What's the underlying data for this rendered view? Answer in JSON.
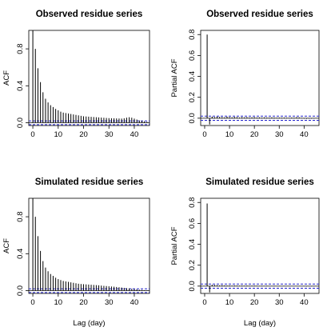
{
  "colors": {
    "bar": "#000000",
    "confidence_band": "#2222cc",
    "zero_line": "#000000",
    "frame": "#000000"
  },
  "chart_data": [
    {
      "type": "bar",
      "id": "obs-acf",
      "title": "Observed residue series",
      "xlabel": "",
      "ylabel": "ACF",
      "xlim": [
        -1.6,
        46
      ],
      "ylim": [
        -0.03,
        1.0
      ],
      "xticks": [
        "0",
        "10",
        "20",
        "30",
        "40"
      ],
      "yticks": [
        "0.0",
        "0.4",
        "0.8"
      ],
      "ci": 0.02,
      "lags": [
        0,
        1,
        2,
        3,
        4,
        5,
        6,
        7,
        8,
        9,
        10,
        11,
        12,
        13,
        14,
        15,
        16,
        17,
        18,
        19,
        20,
        21,
        22,
        23,
        24,
        25,
        26,
        27,
        28,
        29,
        30,
        31,
        32,
        33,
        34,
        35,
        36,
        37,
        38,
        39,
        40,
        41,
        42,
        43,
        44,
        45
      ],
      "values": [
        1.0,
        0.8,
        0.59,
        0.44,
        0.33,
        0.26,
        0.22,
        0.19,
        0.17,
        0.15,
        0.135,
        0.12,
        0.11,
        0.105,
        0.1,
        0.095,
        0.09,
        0.085,
        0.08,
        0.075,
        0.07,
        0.068,
        0.066,
        0.064,
        0.062,
        0.06,
        0.058,
        0.056,
        0.054,
        0.052,
        0.05,
        0.049,
        0.048,
        0.047,
        0.046,
        0.045,
        0.048,
        0.055,
        0.06,
        0.055,
        0.045,
        0.035,
        0.025,
        0.02,
        0.015,
        0.01
      ]
    },
    {
      "type": "bar",
      "id": "obs-pacf",
      "title": "Observed residue series",
      "xlabel": "",
      "ylabel": "Partial ACF",
      "xlim": [
        -1.6,
        46
      ],
      "ylim": [
        -0.07,
        0.84
      ],
      "xticks": [
        "0",
        "10",
        "20",
        "30",
        "40"
      ],
      "yticks": [
        "0.0",
        "0.2",
        "0.4",
        "0.6",
        "0.8"
      ],
      "ci": 0.02,
      "lags": [
        1,
        2,
        3,
        4,
        5,
        6,
        7,
        8,
        9,
        10,
        11,
        12,
        13,
        14,
        15,
        16,
        17,
        18,
        19,
        20,
        21,
        22,
        23,
        24,
        25,
        26,
        27,
        28,
        29,
        30,
        31,
        32,
        33,
        34,
        35,
        36,
        37,
        38,
        39,
        40,
        41,
        42,
        43,
        44,
        45
      ],
      "values": [
        0.8,
        -0.06,
        0.015,
        0.01,
        0.015,
        0.012,
        0.01,
        0.008,
        0.015,
        0.01,
        0.008,
        0.012,
        0.01,
        0.006,
        0.01,
        0.008,
        0.01,
        0.006,
        0.008,
        0.01,
        0.006,
        0.008,
        0.005,
        0.008,
        0.006,
        0.005,
        0.008,
        0.006,
        0.005,
        0.006,
        0.005,
        0.006,
        0.005,
        0.004,
        0.006,
        0.005,
        0.01,
        0.008,
        0.004,
        -0.005,
        -0.006,
        -0.004,
        -0.005,
        -0.003,
        0.003
      ]
    },
    {
      "type": "bar",
      "id": "sim-acf",
      "title": "Simulated residue series",
      "xlabel": "Lag (day)",
      "ylabel": "ACF",
      "xlim": [
        -1.6,
        46
      ],
      "ylim": [
        -0.03,
        1.0
      ],
      "xticks": [
        "0",
        "10",
        "20",
        "30",
        "40"
      ],
      "yticks": [
        "0.0",
        "0.4",
        "0.8"
      ],
      "ci": 0.02,
      "lags": [
        0,
        1,
        2,
        3,
        4,
        5,
        6,
        7,
        8,
        9,
        10,
        11,
        12,
        13,
        14,
        15,
        16,
        17,
        18,
        19,
        20,
        21,
        22,
        23,
        24,
        25,
        26,
        27,
        28,
        29,
        30,
        31,
        32,
        33,
        34,
        35,
        36,
        37,
        38,
        39,
        40,
        41,
        42,
        43,
        44,
        45
      ],
      "values": [
        1.0,
        0.8,
        0.59,
        0.43,
        0.32,
        0.25,
        0.21,
        0.18,
        0.16,
        0.14,
        0.125,
        0.115,
        0.105,
        0.1,
        0.095,
        0.09,
        0.085,
        0.08,
        0.075,
        0.072,
        0.07,
        0.068,
        0.066,
        0.064,
        0.062,
        0.06,
        0.058,
        0.055,
        0.052,
        0.05,
        0.047,
        0.045,
        0.043,
        0.04,
        0.037,
        0.034,
        0.03,
        0.027,
        0.024,
        0.02,
        0.017,
        0.014,
        0.01,
        0.008,
        0.005,
        0.003
      ]
    },
    {
      "type": "bar",
      "id": "sim-pacf",
      "title": "Simulated residue series",
      "xlabel": "Lag (day)",
      "ylabel": "Partial ACF",
      "xlim": [
        -1.6,
        46
      ],
      "ylim": [
        -0.07,
        0.84
      ],
      "xticks": [
        "0",
        "10",
        "20",
        "30",
        "40"
      ],
      "yticks": [
        "0.0",
        "0.2",
        "0.4",
        "0.6",
        "0.8"
      ],
      "ci": 0.02,
      "lags": [
        1,
        2,
        3,
        4,
        5,
        6,
        7,
        8,
        9,
        10,
        11,
        12,
        13,
        14,
        15,
        16,
        17,
        18,
        19,
        20,
        21,
        22,
        23,
        24,
        25,
        26,
        27,
        28,
        29,
        30,
        31,
        32,
        33,
        34,
        35,
        36,
        37,
        38,
        39,
        40,
        41,
        42,
        43,
        44,
        45
      ],
      "values": [
        0.79,
        -0.06,
        0.012,
        0.01,
        0.008,
        0.006,
        0.008,
        0.006,
        0.005,
        0.006,
        0.004,
        0.006,
        0.005,
        0.004,
        0.005,
        0.004,
        0.005,
        0.004,
        0.004,
        0.005,
        0.004,
        0.003,
        0.004,
        0.003,
        0.004,
        0.003,
        0.003,
        0.004,
        0.003,
        0.003,
        0.002,
        0.003,
        0.002,
        0.003,
        0.002,
        0.002,
        0.003,
        0.002,
        0.002,
        -0.002,
        -0.003,
        -0.002,
        -0.003,
        -0.002,
        0.002
      ]
    }
  ]
}
